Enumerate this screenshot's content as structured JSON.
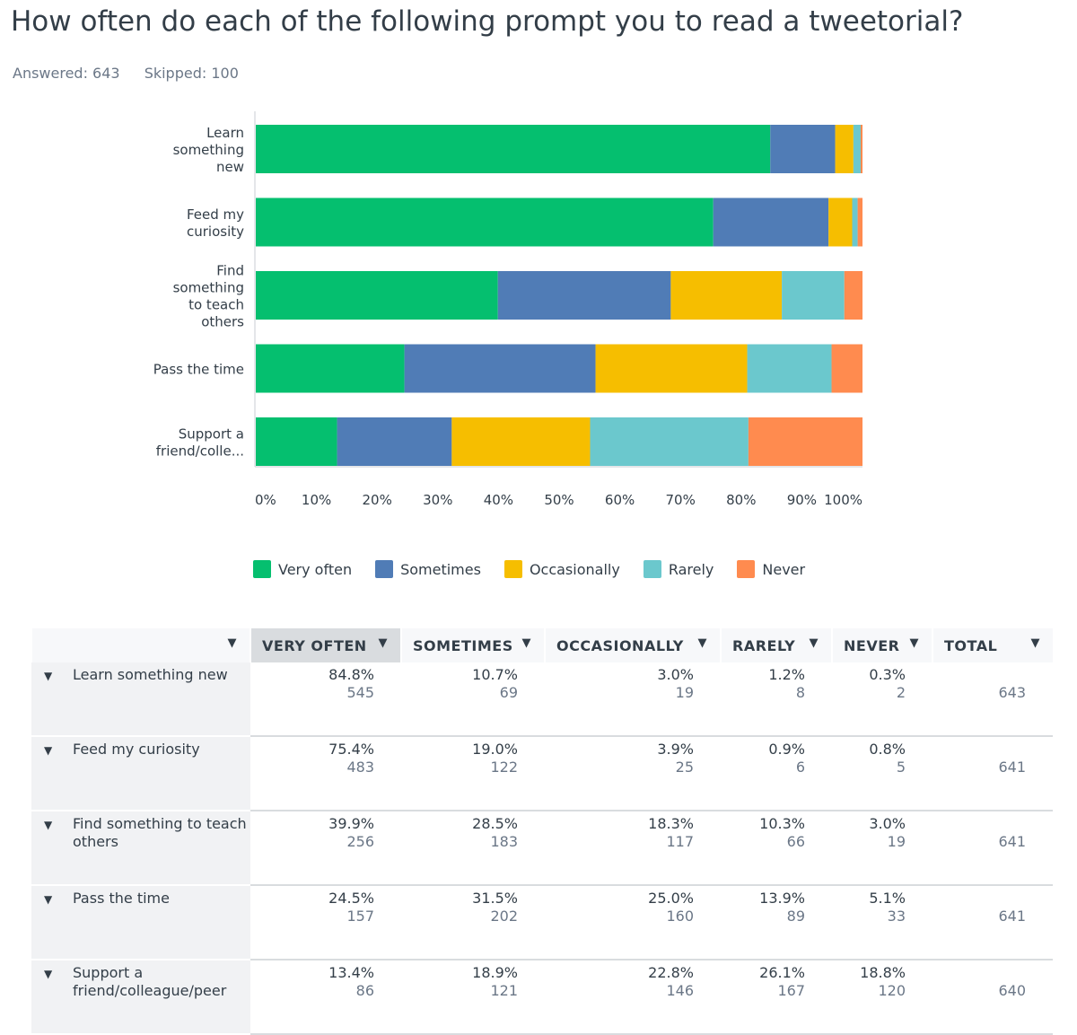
{
  "header": {
    "title": "How often do each of the following prompt you to read a tweetorial?",
    "answered": "Answered: 643",
    "skipped": "Skipped: 100"
  },
  "colors": {
    "very_often": "#05bf6f",
    "sometimes": "#507cb6",
    "occasionally": "#f6be00",
    "rarely": "#6bc8cd",
    "never": "#ff8b4f"
  },
  "chart_data": {
    "type": "bar",
    "orientation": "horizontal",
    "stacked": true,
    "categories": [
      [
        "Learn",
        "something",
        "new"
      ],
      [
        "Feed my",
        "curiosity"
      ],
      [
        "Find",
        "something",
        "to teach",
        "others"
      ],
      [
        "Pass the time"
      ],
      [
        "Support a",
        "friend/colle..."
      ]
    ],
    "series": [
      {
        "name": "Very often",
        "values": [
          84.8,
          75.4,
          39.9,
          24.5,
          13.4
        ]
      },
      {
        "name": "Sometimes",
        "values": [
          10.7,
          19.0,
          28.5,
          31.5,
          18.9
        ]
      },
      {
        "name": "Occasionally",
        "values": [
          3.0,
          3.9,
          18.3,
          25.0,
          22.8
        ]
      },
      {
        "name": "Rarely",
        "values": [
          1.2,
          0.9,
          10.3,
          13.9,
          26.1
        ]
      },
      {
        "name": "Never",
        "values": [
          0.3,
          0.8,
          3.0,
          5.1,
          18.8
        ]
      }
    ],
    "xlim": [
      0,
      100
    ],
    "xticks": [
      "0%",
      "10%",
      "20%",
      "30%",
      "40%",
      "50%",
      "60%",
      "70%",
      "80%",
      "90%",
      "100%"
    ],
    "legend_position": "bottom",
    "grid": false
  },
  "table": {
    "columns": [
      "VERY OFTEN",
      "SOMETIMES",
      "OCCASIONALLY",
      "RARELY",
      "NEVER",
      "TOTAL"
    ],
    "rows": [
      {
        "label": "Learn something new",
        "cells": [
          [
            "84.8%",
            "545"
          ],
          [
            "10.7%",
            "69"
          ],
          [
            "3.0%",
            "19"
          ],
          [
            "1.2%",
            "8"
          ],
          [
            "0.3%",
            "2"
          ]
        ],
        "total": "643"
      },
      {
        "label": "Feed my curiosity",
        "cells": [
          [
            "75.4%",
            "483"
          ],
          [
            "19.0%",
            "122"
          ],
          [
            "3.9%",
            "25"
          ],
          [
            "0.9%",
            "6"
          ],
          [
            "0.8%",
            "5"
          ]
        ],
        "total": "641"
      },
      {
        "label": "Find something to teach others",
        "cells": [
          [
            "39.9%",
            "256"
          ],
          [
            "28.5%",
            "183"
          ],
          [
            "18.3%",
            "117"
          ],
          [
            "10.3%",
            "66"
          ],
          [
            "3.0%",
            "19"
          ]
        ],
        "total": "641"
      },
      {
        "label": "Pass the time",
        "cells": [
          [
            "24.5%",
            "157"
          ],
          [
            "31.5%",
            "202"
          ],
          [
            "25.0%",
            "160"
          ],
          [
            "13.9%",
            "89"
          ],
          [
            "5.1%",
            "33"
          ]
        ],
        "total": "641"
      },
      {
        "label": "Support a friend/colleague/peer",
        "cells": [
          [
            "13.4%",
            "86"
          ],
          [
            "18.9%",
            "121"
          ],
          [
            "22.8%",
            "146"
          ],
          [
            "26.1%",
            "167"
          ],
          [
            "18.8%",
            "120"
          ]
        ],
        "total": "640"
      }
    ]
  }
}
